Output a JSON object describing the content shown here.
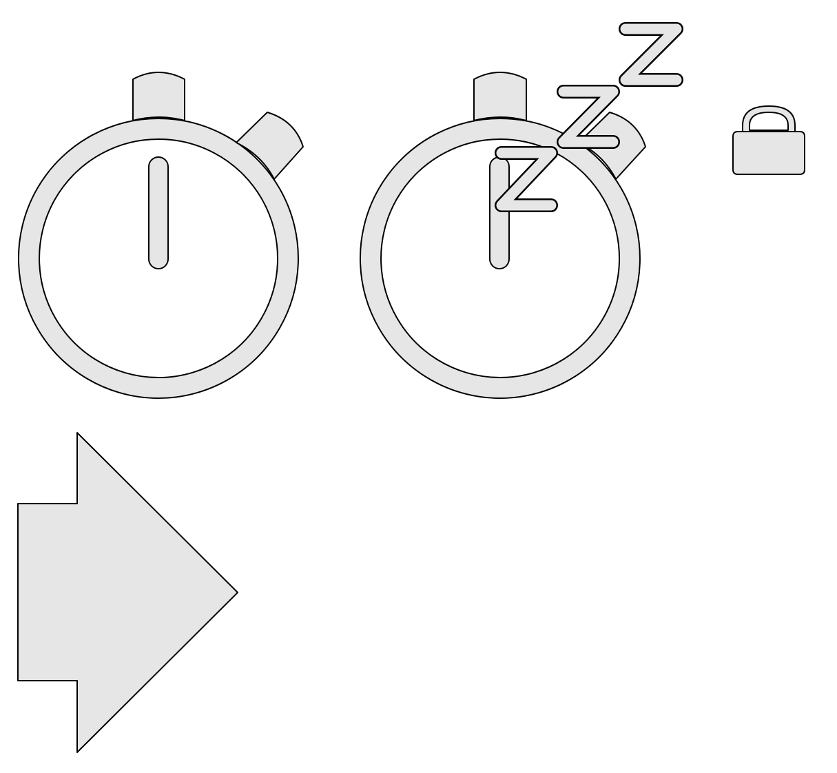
{
  "icons": [
    {
      "name": "stopwatch-icon",
      "interactable": true
    },
    {
      "name": "stopwatch-sleep-icon",
      "interactable": true
    },
    {
      "name": "lock-icon",
      "interactable": true
    },
    {
      "name": "arrow-right-icon",
      "interactable": true
    }
  ],
  "colors": {
    "fill": "#e6e6e6",
    "stroke": "#000000",
    "background": "#ffffff"
  }
}
